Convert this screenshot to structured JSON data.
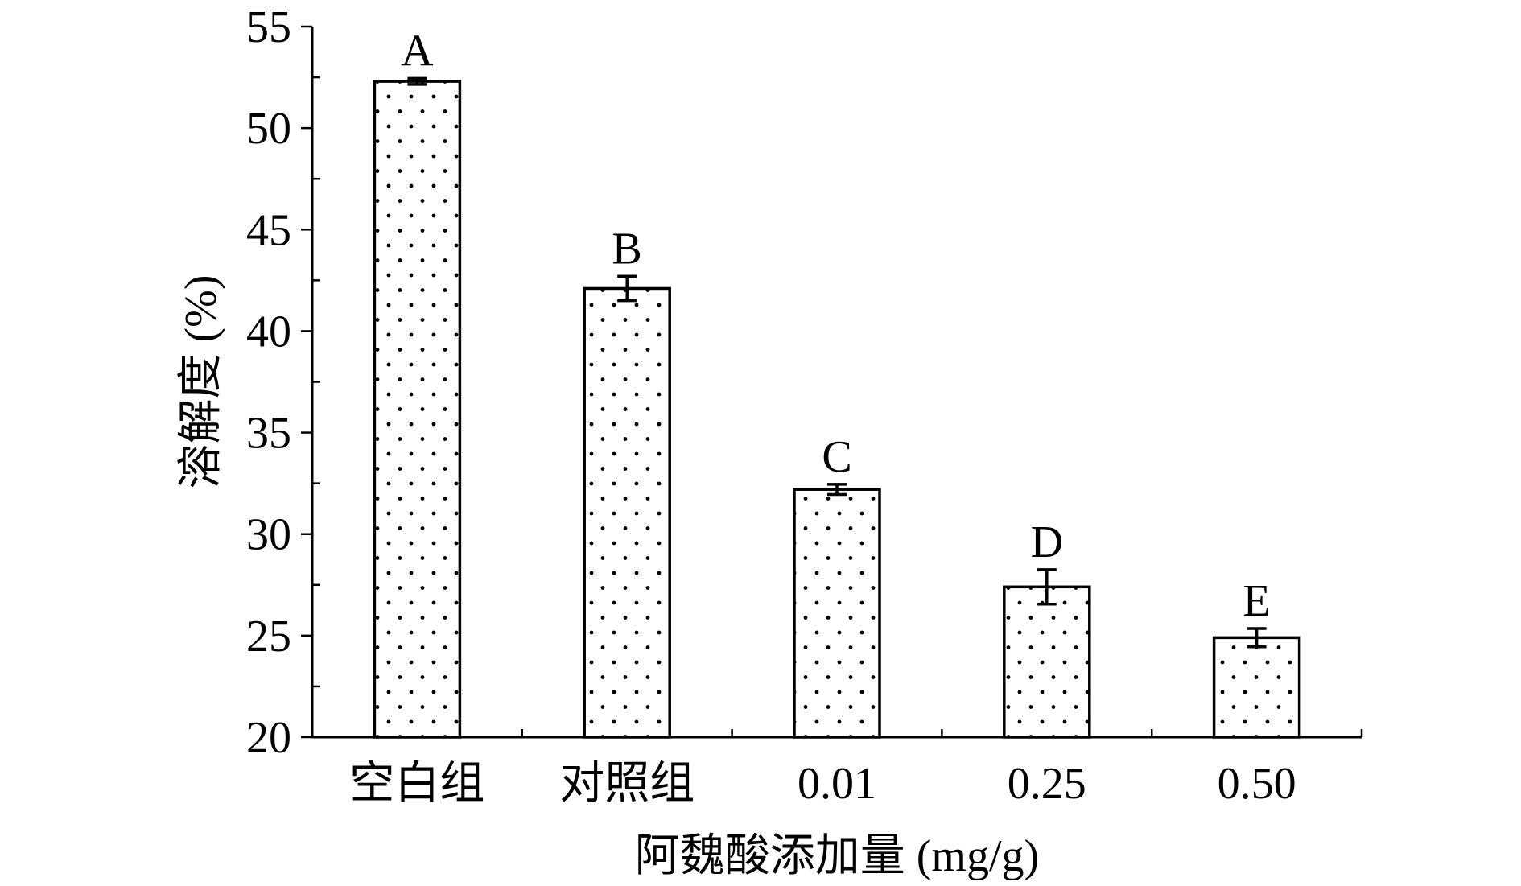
{
  "chart_data": {
    "type": "bar",
    "title": "",
    "xlabel": "阿魏酸添加量 (mg/g)",
    "ylabel": "溶解度 (%)",
    "ylim": [
      20,
      55
    ],
    "yticks": [
      20,
      25,
      30,
      35,
      40,
      45,
      50,
      55
    ],
    "categories": [
      "空白组",
      "对照组",
      "0.01",
      "0.25",
      "0.50"
    ],
    "series": [
      {
        "values": [
          52.3,
          42.1,
          32.2,
          27.4,
          24.9
        ],
        "errors": [
          0.15,
          0.6,
          0.25,
          0.85,
          0.45
        ],
        "labels": [
          "A",
          "B",
          "C",
          "D",
          "E"
        ],
        "pattern": "dotted",
        "color": "#000000"
      }
    ],
    "grid": false,
    "legend": "none"
  }
}
